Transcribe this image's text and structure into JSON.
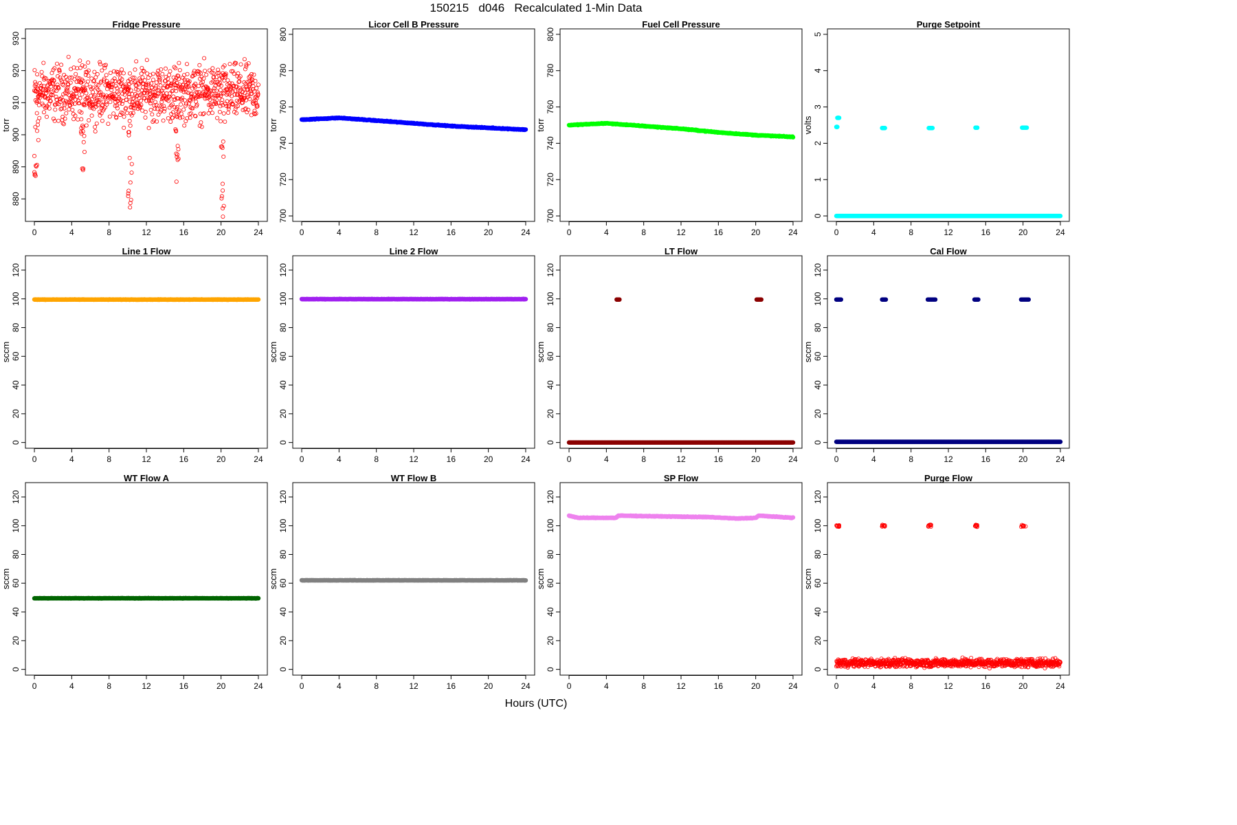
{
  "page": {
    "title": "150215   d046   Recalculated 1-Min Data",
    "xlabel": "Hours (UTC)"
  },
  "chart_data": [
    {
      "type": "scatter",
      "title": "Fridge Pressure",
      "ylabel": "torr",
      "xlim": [
        0,
        24
      ],
      "ylim": [
        873,
        933
      ],
      "yticks": [
        880,
        890,
        900,
        910,
        920,
        930
      ],
      "xticks": [
        0,
        4,
        8,
        12,
        16,
        20,
        24
      ],
      "color": "#ff0000",
      "marker": "open-circle",
      "series": [
        {
          "pattern": "noisy",
          "x": [
            0,
            24
          ],
          "center": 913,
          "spread": 6,
          "dips": [
            {
              "x": 0.2,
              "min": 875
            },
            {
              "x": 5.2,
              "min": 888
            },
            {
              "x": 10.2,
              "min": 877
            },
            {
              "x": 15.2,
              "min": 885
            },
            {
              "x": 20.2,
              "min": 874
            }
          ]
        }
      ]
    },
    {
      "type": "scatter",
      "title": "Licor Cell B Pressure",
      "ylabel": "torr",
      "xlim": [
        0,
        24
      ],
      "ylim": [
        697,
        803
      ],
      "yticks": [
        700,
        720,
        740,
        760,
        780,
        800
      ],
      "xticks": [
        0,
        4,
        8,
        12,
        16,
        20,
        24
      ],
      "color": "#0000ff",
      "marker": "filled-circle",
      "series": [
        {
          "pattern": "trend",
          "x": [
            0,
            24
          ],
          "y": [
            [
              0,
              753
            ],
            [
              4,
              754
            ],
            [
              8,
              752.5
            ],
            [
              12,
              751
            ],
            [
              16,
              749.5
            ],
            [
              20,
              748.5
            ],
            [
              24,
              747.5
            ]
          ]
        }
      ]
    },
    {
      "type": "scatter",
      "title": "Fuel Cell Pressure",
      "ylabel": "torr",
      "xlim": [
        0,
        24
      ],
      "ylim": [
        697,
        803
      ],
      "yticks": [
        700,
        720,
        740,
        760,
        780,
        800
      ],
      "xticks": [
        0,
        4,
        8,
        12,
        16,
        20,
        24
      ],
      "color": "#00ff00",
      "marker": "filled-circle",
      "series": [
        {
          "pattern": "trend",
          "x": [
            0,
            24
          ],
          "y": [
            [
              0,
              750
            ],
            [
              4,
              751
            ],
            [
              8,
              749.5
            ],
            [
              12,
              748
            ],
            [
              16,
              746
            ],
            [
              20,
              744.5
            ],
            [
              24,
              743.5
            ]
          ]
        }
      ]
    },
    {
      "type": "scatter",
      "title": "Purge Setpoint",
      "ylabel": "volts",
      "xlim": [
        0,
        24
      ],
      "ylim": [
        -0.15,
        5.15
      ],
      "yticks": [
        0,
        1,
        2,
        3,
        4,
        5
      ],
      "xticks": [
        0,
        4,
        8,
        12,
        16,
        20,
        24
      ],
      "color": "#00ffff",
      "marker": "filled-circle",
      "series": [
        {
          "pattern": "baseline-events",
          "baseline": 0,
          "events": [
            {
              "x": [
                0.1,
                0.3
              ],
              "y": 2.7
            },
            {
              "x": [
                0.0,
                0.1
              ],
              "y": 2.45
            },
            {
              "x": [
                4.9,
                5.2
              ],
              "y": 2.42
            },
            {
              "x": [
                9.9,
                10.3
              ],
              "y": 2.42
            },
            {
              "x": [
                14.9,
                15.1
              ],
              "y": 2.43
            },
            {
              "x": [
                19.9,
                20.4
              ],
              "y": 2.43
            }
          ]
        }
      ]
    },
    {
      "type": "scatter",
      "title": "Line 1 Flow",
      "ylabel": "sccm",
      "xlim": [
        0,
        24
      ],
      "ylim": [
        -4,
        130
      ],
      "yticks": [
        0,
        20,
        40,
        60,
        80,
        100,
        120
      ],
      "xticks": [
        0,
        4,
        8,
        12,
        16,
        20,
        24
      ],
      "color": "#ffa500",
      "marker": "filled-circle",
      "series": [
        {
          "pattern": "flat",
          "x": [
            0,
            24
          ],
          "y": 99.5
        }
      ]
    },
    {
      "type": "scatter",
      "title": "Line 2 Flow",
      "ylabel": "sccm",
      "xlim": [
        0,
        24
      ],
      "ylim": [
        -4,
        130
      ],
      "yticks": [
        0,
        20,
        40,
        60,
        80,
        100,
        120
      ],
      "xticks": [
        0,
        4,
        8,
        12,
        16,
        20,
        24
      ],
      "color": "#a020f0",
      "marker": "filled-circle",
      "series": [
        {
          "pattern": "flat",
          "x": [
            0,
            24
          ],
          "y": 99.8
        }
      ]
    },
    {
      "type": "scatter",
      "title": "LT Flow",
      "ylabel": "sccm",
      "xlim": [
        0,
        24
      ],
      "ylim": [
        -4,
        130
      ],
      "yticks": [
        0,
        20,
        40,
        60,
        80,
        100,
        120
      ],
      "xticks": [
        0,
        4,
        8,
        12,
        16,
        20,
        24
      ],
      "color": "#8b0000",
      "marker": "filled-circle",
      "series": [
        {
          "pattern": "baseline-events",
          "baseline": 0,
          "events": [
            {
              "x": [
                5.1,
                5.4
              ],
              "y": 99.5
            },
            {
              "x": [
                20.1,
                20.6
              ],
              "y": 99.5
            }
          ]
        }
      ]
    },
    {
      "type": "scatter",
      "title": "Cal Flow",
      "ylabel": "sccm",
      "xlim": [
        0,
        24
      ],
      "ylim": [
        -4,
        130
      ],
      "yticks": [
        0,
        20,
        40,
        60,
        80,
        100,
        120
      ],
      "xticks": [
        0,
        4,
        8,
        12,
        16,
        20,
        24
      ],
      "color": "#000080",
      "marker": "filled-circle",
      "series": [
        {
          "pattern": "baseline-events",
          "baseline": 0.5,
          "events": [
            {
              "x": [
                0.0,
                0.5
              ],
              "y": 99.5
            },
            {
              "x": [
                4.9,
                5.3
              ],
              "y": 99.5
            },
            {
              "x": [
                9.8,
                10.6
              ],
              "y": 99.5
            },
            {
              "x": [
                14.8,
                15.2
              ],
              "y": 99.5
            },
            {
              "x": [
                19.8,
                20.6
              ],
              "y": 99.5
            }
          ]
        }
      ]
    },
    {
      "type": "scatter",
      "title": "WT Flow A",
      "ylabel": "sccm",
      "xlim": [
        0,
        24
      ],
      "ylim": [
        -4,
        130
      ],
      "yticks": [
        0,
        20,
        40,
        60,
        80,
        100,
        120
      ],
      "xticks": [
        0,
        4,
        8,
        12,
        16,
        20,
        24
      ],
      "color": "#006400",
      "marker": "filled-circle",
      "series": [
        {
          "pattern": "flat",
          "x": [
            0,
            24
          ],
          "y": 49.5
        }
      ]
    },
    {
      "type": "scatter",
      "title": "WT Flow B",
      "ylabel": "sccm",
      "xlim": [
        0,
        24
      ],
      "ylim": [
        -4,
        130
      ],
      "yticks": [
        0,
        20,
        40,
        60,
        80,
        100,
        120
      ],
      "xticks": [
        0,
        4,
        8,
        12,
        16,
        20,
        24
      ],
      "color": "#808080",
      "marker": "filled-circle",
      "series": [
        {
          "pattern": "flat",
          "x": [
            0,
            24
          ],
          "y": 62
        }
      ]
    },
    {
      "type": "scatter",
      "title": "SP Flow",
      "ylabel": "sccm",
      "xlim": [
        0,
        24
      ],
      "ylim": [
        -4,
        130
      ],
      "yticks": [
        0,
        20,
        40,
        60,
        80,
        100,
        120
      ],
      "xticks": [
        0,
        4,
        8,
        12,
        16,
        20,
        24
      ],
      "color": "#ee82ee",
      "marker": "filled-circle",
      "series": [
        {
          "pattern": "trend",
          "x": [
            0,
            24
          ],
          "y": [
            [
              0,
              107
            ],
            [
              1,
              105.5
            ],
            [
              5,
              105.5
            ],
            [
              5.3,
              107
            ],
            [
              10,
              106.5
            ],
            [
              15,
              106
            ],
            [
              18,
              105
            ],
            [
              20,
              105.5
            ],
            [
              20.3,
              107
            ],
            [
              24,
              105.5
            ]
          ]
        }
      ]
    },
    {
      "type": "scatter",
      "title": "Purge Flow",
      "ylabel": "sccm",
      "xlim": [
        0,
        24
      ],
      "ylim": [
        -4,
        130
      ],
      "yticks": [
        0,
        20,
        40,
        60,
        80,
        100,
        120
      ],
      "xticks": [
        0,
        4,
        8,
        12,
        16,
        20,
        24
      ],
      "color": "#ff0000",
      "marker": "open-circle",
      "series": [
        {
          "pattern": "noisy-events",
          "baseline": 4.5,
          "spread": 2,
          "events": [
            {
              "x": [
                0.0,
                0.3
              ],
              "y": 100
            },
            {
              "x": [
                4.9,
                5.2
              ],
              "y": 100
            },
            {
              "x": [
                9.8,
                10.2
              ],
              "y": 100
            },
            {
              "x": [
                14.8,
                15.1
              ],
              "y": 100
            },
            {
              "x": [
                19.8,
                20.4
              ],
              "y": 100
            }
          ]
        }
      ]
    }
  ]
}
